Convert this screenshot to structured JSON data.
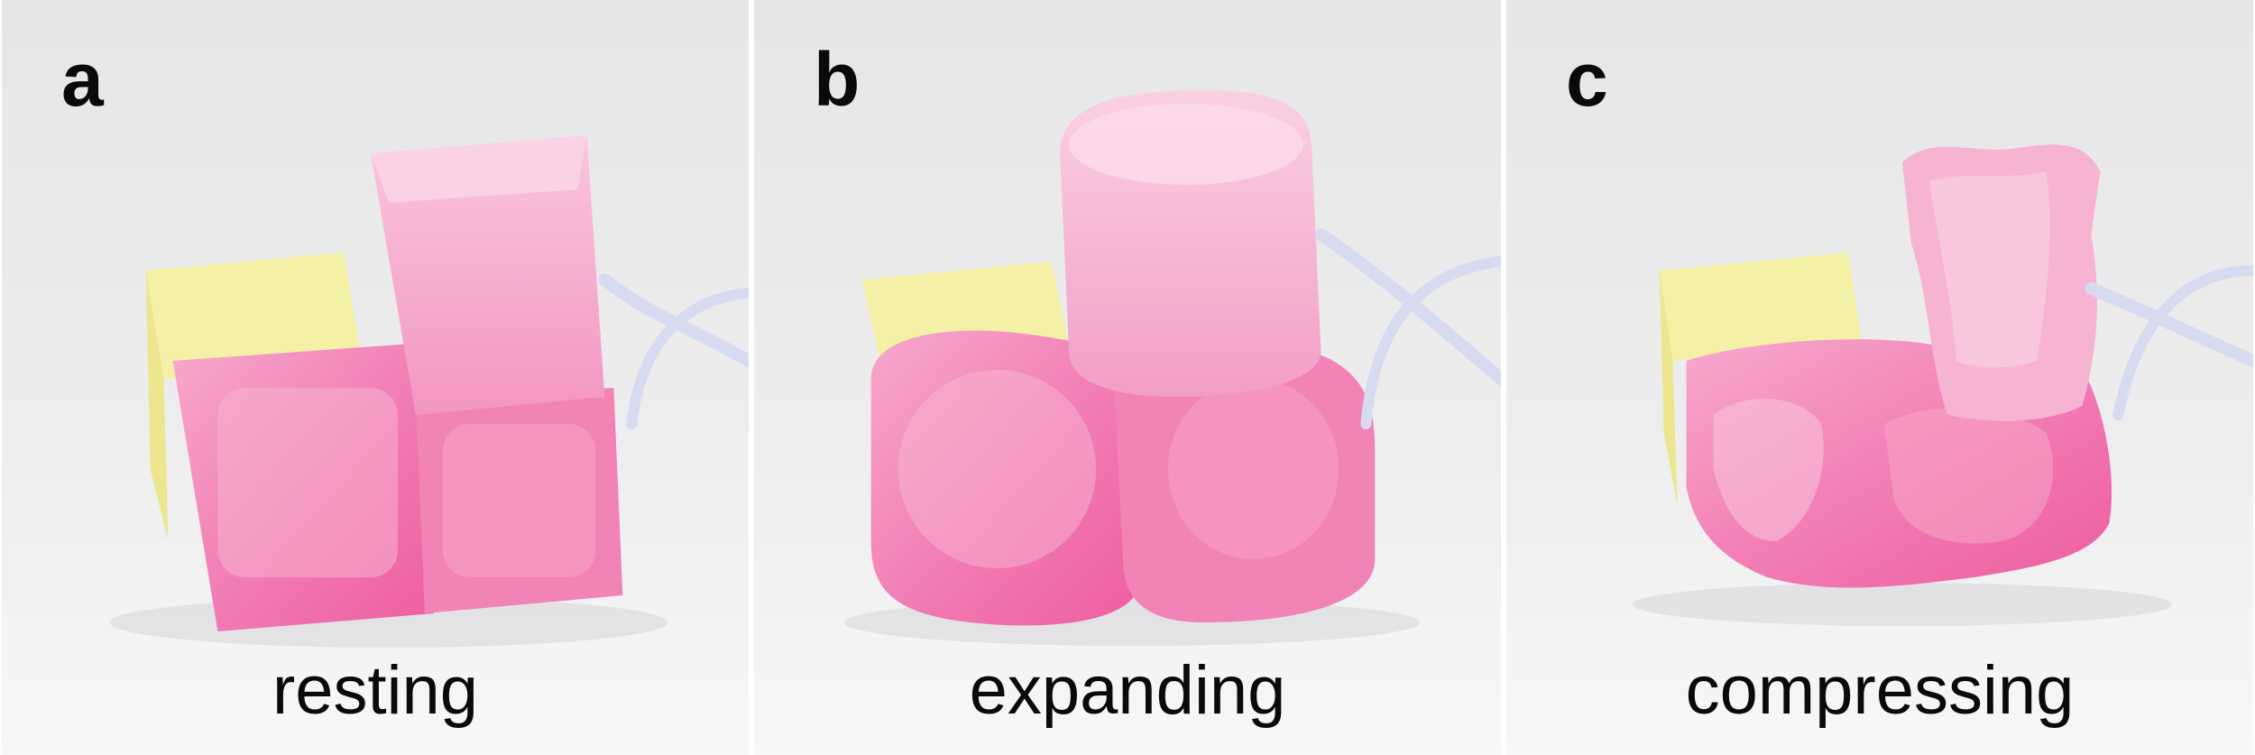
{
  "figure": {
    "background": "#ffffff",
    "panels": [
      {
        "letter": "a",
        "caption": "resting"
      },
      {
        "letter": "b",
        "caption": "expanding"
      },
      {
        "letter": "c",
        "caption": "compressing"
      }
    ]
  },
  "colors": {
    "backdrop": "#e9e9ea",
    "actuator_pink": "#f06aa8",
    "actuator_pink_light": "#f8b8d6",
    "yellow_cube": "#f2ef9c",
    "tubing": "#d9dced",
    "text": "#0a0a0a"
  }
}
